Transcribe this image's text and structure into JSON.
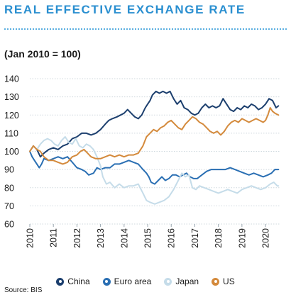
{
  "title": "REAL EFFECTIVE EXCHANGE RATE",
  "subtitle": "(Jan 2010 = 100)",
  "source": "Source: BIS",
  "chart_data": {
    "type": "line",
    "ylim": [
      60,
      140
    ],
    "yticks": [
      "60",
      "70",
      "80",
      "90",
      "100",
      "110",
      "120",
      "130",
      "140"
    ],
    "xlim": [
      2010.0,
      2020.6
    ],
    "xticks": [
      "2010",
      "2011",
      "2012",
      "2013",
      "2014",
      "2015",
      "2016",
      "2017",
      "2018",
      "2019",
      "2020"
    ],
    "grid": true,
    "legend_position": "bottom",
    "series": [
      {
        "name": "China",
        "color": "#1c3f6e",
        "points": [
          [
            2010.0,
            100
          ],
          [
            2010.15,
            103
          ],
          [
            2010.3,
            101
          ],
          [
            2010.45,
            97
          ],
          [
            2010.6,
            99
          ],
          [
            2010.8,
            101
          ],
          [
            2011.0,
            102
          ],
          [
            2011.2,
            101
          ],
          [
            2011.4,
            103
          ],
          [
            2011.6,
            104
          ],
          [
            2011.8,
            107
          ],
          [
            2012.0,
            108
          ],
          [
            2012.2,
            110
          ],
          [
            2012.4,
            110
          ],
          [
            2012.6,
            109
          ],
          [
            2012.8,
            110
          ],
          [
            2013.0,
            112
          ],
          [
            2013.2,
            115
          ],
          [
            2013.35,
            117
          ],
          [
            2013.5,
            118
          ],
          [
            2013.7,
            119
          ],
          [
            2013.85,
            120
          ],
          [
            2014.0,
            121
          ],
          [
            2014.15,
            123
          ],
          [
            2014.3,
            121
          ],
          [
            2014.45,
            119
          ],
          [
            2014.6,
            118
          ],
          [
            2014.75,
            120
          ],
          [
            2014.9,
            124
          ],
          [
            2015.0,
            126
          ],
          [
            2015.1,
            128
          ],
          [
            2015.2,
            131
          ],
          [
            2015.35,
            133
          ],
          [
            2015.5,
            132
          ],
          [
            2015.65,
            133
          ],
          [
            2015.8,
            132
          ],
          [
            2015.95,
            133
          ],
          [
            2016.1,
            129
          ],
          [
            2016.25,
            126
          ],
          [
            2016.4,
            128
          ],
          [
            2016.55,
            124
          ],
          [
            2016.7,
            123
          ],
          [
            2016.85,
            121
          ],
          [
            2017.0,
            120
          ],
          [
            2017.15,
            121
          ],
          [
            2017.3,
            124
          ],
          [
            2017.45,
            126
          ],
          [
            2017.6,
            124
          ],
          [
            2017.75,
            125
          ],
          [
            2017.9,
            124
          ],
          [
            2018.05,
            125
          ],
          [
            2018.2,
            129
          ],
          [
            2018.35,
            126
          ],
          [
            2018.5,
            123
          ],
          [
            2018.65,
            122
          ],
          [
            2018.8,
            124
          ],
          [
            2018.95,
            123
          ],
          [
            2019.1,
            125
          ],
          [
            2019.25,
            124
          ],
          [
            2019.4,
            126
          ],
          [
            2019.55,
            125
          ],
          [
            2019.7,
            123
          ],
          [
            2019.85,
            124
          ],
          [
            2020.0,
            126
          ],
          [
            2020.15,
            129
          ],
          [
            2020.3,
            128
          ],
          [
            2020.45,
            124
          ],
          [
            2020.55,
            125
          ]
        ]
      },
      {
        "name": "Euro area",
        "color": "#2a6fb3",
        "points": [
          [
            2010.0,
            100
          ],
          [
            2010.1,
            97
          ],
          [
            2010.25,
            94
          ],
          [
            2010.4,
            91
          ],
          [
            2010.5,
            93
          ],
          [
            2010.6,
            96
          ],
          [
            2010.8,
            95
          ],
          [
            2011.0,
            96
          ],
          [
            2011.2,
            97
          ],
          [
            2011.4,
            96
          ],
          [
            2011.6,
            97
          ],
          [
            2011.8,
            94
          ],
          [
            2012.0,
            91
          ],
          [
            2012.2,
            90
          ],
          [
            2012.35,
            89
          ],
          [
            2012.5,
            87
          ],
          [
            2012.7,
            88
          ],
          [
            2012.85,
            91
          ],
          [
            2013.0,
            90
          ],
          [
            2013.2,
            91
          ],
          [
            2013.4,
            91
          ],
          [
            2013.6,
            93
          ],
          [
            2013.8,
            93
          ],
          [
            2014.0,
            94
          ],
          [
            2014.2,
            95
          ],
          [
            2014.4,
            94
          ],
          [
            2014.6,
            93
          ],
          [
            2014.8,
            90
          ],
          [
            2014.95,
            88
          ],
          [
            2015.05,
            86
          ],
          [
            2015.15,
            83
          ],
          [
            2015.3,
            82
          ],
          [
            2015.45,
            84
          ],
          [
            2015.6,
            86
          ],
          [
            2015.75,
            84
          ],
          [
            2015.9,
            85
          ],
          [
            2016.05,
            87
          ],
          [
            2016.2,
            87
          ],
          [
            2016.35,
            86
          ],
          [
            2016.5,
            87
          ],
          [
            2016.65,
            88
          ],
          [
            2016.8,
            86
          ],
          [
            2016.95,
            85
          ],
          [
            2017.1,
            85
          ],
          [
            2017.3,
            87
          ],
          [
            2017.5,
            89
          ],
          [
            2017.7,
            90
          ],
          [
            2017.9,
            90
          ],
          [
            2018.1,
            90
          ],
          [
            2018.3,
            90
          ],
          [
            2018.5,
            91
          ],
          [
            2018.7,
            90
          ],
          [
            2018.9,
            89
          ],
          [
            2019.1,
            88
          ],
          [
            2019.3,
            87
          ],
          [
            2019.5,
            88
          ],
          [
            2019.7,
            87
          ],
          [
            2019.9,
            86
          ],
          [
            2020.1,
            87
          ],
          [
            2020.25,
            88
          ],
          [
            2020.4,
            90
          ],
          [
            2020.55,
            90
          ]
        ]
      },
      {
        "name": "Japan",
        "color": "#c5dce9",
        "points": [
          [
            2010.0,
            100
          ],
          [
            2010.15,
            103
          ],
          [
            2010.3,
            101
          ],
          [
            2010.45,
            104
          ],
          [
            2010.6,
            106
          ],
          [
            2010.75,
            107
          ],
          [
            2010.9,
            106
          ],
          [
            2011.05,
            104
          ],
          [
            2011.2,
            103
          ],
          [
            2011.35,
            106
          ],
          [
            2011.5,
            108
          ],
          [
            2011.65,
            105
          ],
          [
            2011.8,
            104
          ],
          [
            2011.95,
            107
          ],
          [
            2012.1,
            103
          ],
          [
            2012.25,
            102
          ],
          [
            2012.4,
            104
          ],
          [
            2012.55,
            103
          ],
          [
            2012.7,
            101
          ],
          [
            2012.85,
            97
          ],
          [
            2013.0,
            92
          ],
          [
            2013.1,
            86
          ],
          [
            2013.25,
            82
          ],
          [
            2013.4,
            83
          ],
          [
            2013.6,
            80
          ],
          [
            2013.8,
            82
          ],
          [
            2014.0,
            80
          ],
          [
            2014.2,
            81
          ],
          [
            2014.4,
            81
          ],
          [
            2014.6,
            82
          ],
          [
            2014.8,
            77
          ],
          [
            2014.95,
            73
          ],
          [
            2015.1,
            72
          ],
          [
            2015.3,
            71
          ],
          [
            2015.5,
            72
          ],
          [
            2015.7,
            73
          ],
          [
            2015.9,
            75
          ],
          [
            2016.1,
            79
          ],
          [
            2016.3,
            84
          ],
          [
            2016.45,
            88
          ],
          [
            2016.6,
            86
          ],
          [
            2016.75,
            87
          ],
          [
            2016.9,
            80
          ],
          [
            2017.05,
            79
          ],
          [
            2017.2,
            81
          ],
          [
            2017.4,
            80
          ],
          [
            2017.6,
            79
          ],
          [
            2017.8,
            78
          ],
          [
            2018.0,
            77
          ],
          [
            2018.2,
            78
          ],
          [
            2018.4,
            79
          ],
          [
            2018.6,
            78
          ],
          [
            2018.8,
            77
          ],
          [
            2019.0,
            79
          ],
          [
            2019.2,
            80
          ],
          [
            2019.4,
            81
          ],
          [
            2019.6,
            80
          ],
          [
            2019.8,
            79
          ],
          [
            2020.0,
            80
          ],
          [
            2020.2,
            82
          ],
          [
            2020.35,
            83
          ],
          [
            2020.5,
            81
          ],
          [
            2020.55,
            81
          ]
        ]
      },
      {
        "name": "US",
        "color": "#d48a3c",
        "points": [
          [
            2010.0,
            100
          ],
          [
            2010.15,
            103
          ],
          [
            2010.3,
            101
          ],
          [
            2010.45,
            100
          ],
          [
            2010.6,
            97
          ],
          [
            2010.8,
            95
          ],
          [
            2011.0,
            95
          ],
          [
            2011.2,
            94
          ],
          [
            2011.4,
            93
          ],
          [
            2011.6,
            94
          ],
          [
            2011.8,
            97
          ],
          [
            2012.0,
            98
          ],
          [
            2012.15,
            100
          ],
          [
            2012.3,
            101
          ],
          [
            2012.45,
            99
          ],
          [
            2012.6,
            97
          ],
          [
            2012.8,
            96
          ],
          [
            2013.0,
            96
          ],
          [
            2013.2,
            97
          ],
          [
            2013.4,
            98
          ],
          [
            2013.6,
            97
          ],
          [
            2013.8,
            98
          ],
          [
            2014.0,
            97
          ],
          [
            2014.2,
            98
          ],
          [
            2014.4,
            98
          ],
          [
            2014.6,
            99
          ],
          [
            2014.8,
            103
          ],
          [
            2014.95,
            108
          ],
          [
            2015.1,
            110
          ],
          [
            2015.25,
            112
          ],
          [
            2015.4,
            111
          ],
          [
            2015.55,
            113
          ],
          [
            2015.7,
            114
          ],
          [
            2015.85,
            116
          ],
          [
            2016.0,
            117
          ],
          [
            2016.15,
            115
          ],
          [
            2016.3,
            113
          ],
          [
            2016.45,
            112
          ],
          [
            2016.6,
            115
          ],
          [
            2016.75,
            117
          ],
          [
            2016.9,
            119
          ],
          [
            2017.05,
            118
          ],
          [
            2017.2,
            116
          ],
          [
            2017.35,
            115
          ],
          [
            2017.5,
            113
          ],
          [
            2017.65,
            111
          ],
          [
            2017.8,
            110
          ],
          [
            2017.95,
            111
          ],
          [
            2018.1,
            109
          ],
          [
            2018.25,
            111
          ],
          [
            2018.4,
            114
          ],
          [
            2018.55,
            116
          ],
          [
            2018.7,
            117
          ],
          [
            2018.85,
            116
          ],
          [
            2019.0,
            118
          ],
          [
            2019.15,
            117
          ],
          [
            2019.3,
            116
          ],
          [
            2019.45,
            117
          ],
          [
            2019.6,
            118
          ],
          [
            2019.75,
            117
          ],
          [
            2019.9,
            116
          ],
          [
            2020.0,
            117
          ],
          [
            2020.1,
            120
          ],
          [
            2020.2,
            124
          ],
          [
            2020.3,
            122
          ],
          [
            2020.4,
            121
          ],
          [
            2020.55,
            120
          ]
        ]
      }
    ]
  }
}
